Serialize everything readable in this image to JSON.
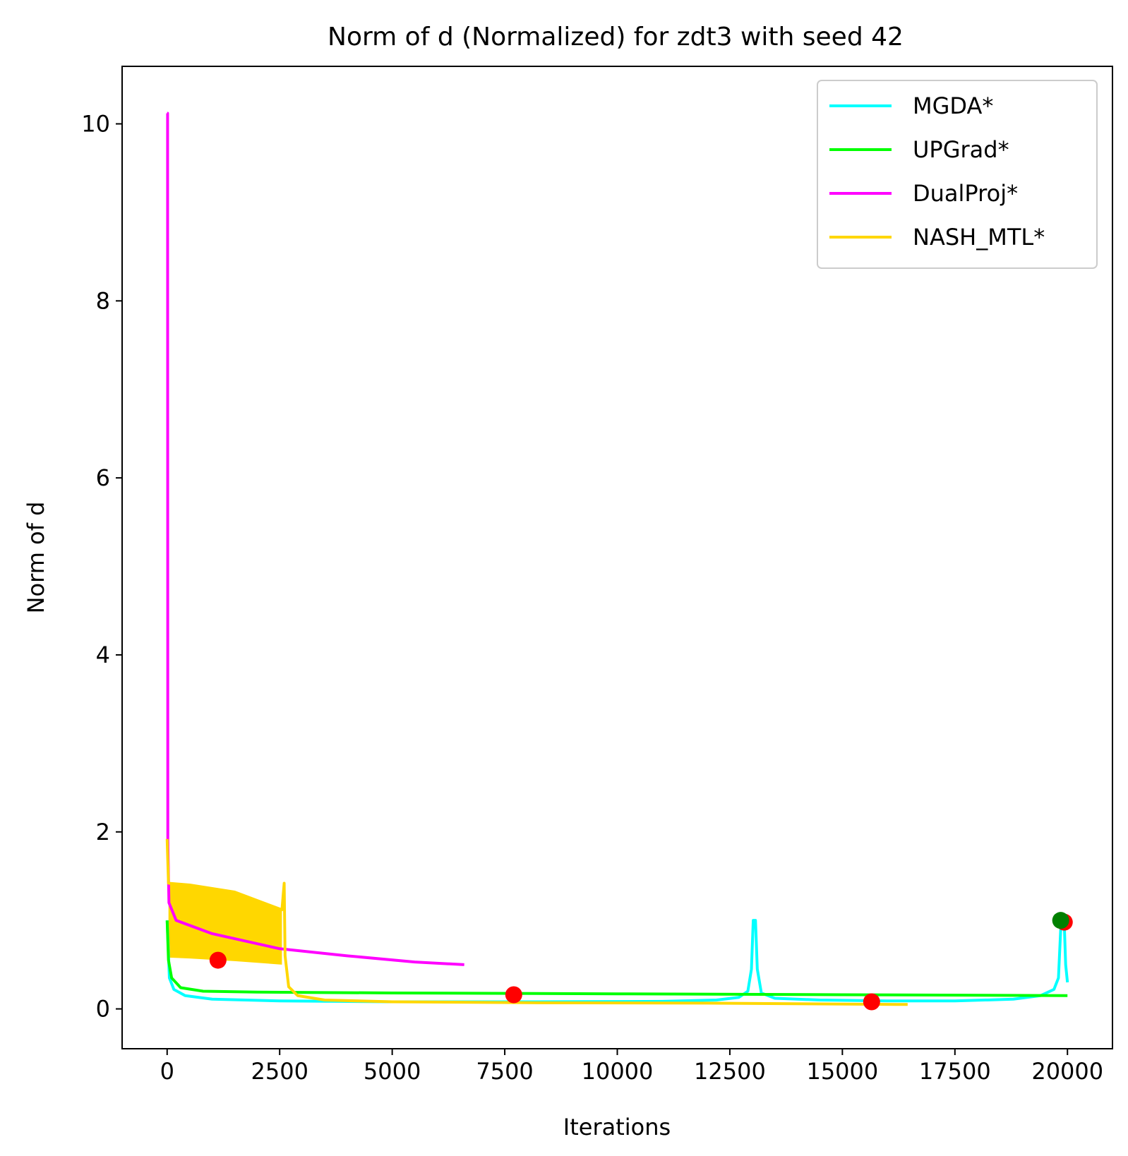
{
  "chart_data": {
    "type": "line",
    "title": "Norm of d (Normalized) for zdt3 with seed 42",
    "xlabel": "Iterations",
    "ylabel": "Norm of d",
    "xlim": [
      -1000,
      21000
    ],
    "ylim": [
      -0.45,
      10.65
    ],
    "xticks": [
      0,
      2500,
      5000,
      7500,
      10000,
      12500,
      15000,
      17500,
      20000
    ],
    "xtick_labels": [
      "0",
      "2500",
      "5000",
      "7500",
      "10000",
      "12500",
      "15000",
      "17500",
      "20000"
    ],
    "yticks": [
      0,
      2,
      4,
      6,
      8,
      10
    ],
    "ytick_labels": [
      "0",
      "2",
      "4",
      "6",
      "8",
      "10"
    ],
    "grid": false,
    "legend_position": "top-right",
    "series": [
      {
        "name": "MGDA*",
        "color": "#00ffff",
        "points": [
          [
            0,
            1.0
          ],
          [
            50,
            0.35
          ],
          [
            150,
            0.22
          ],
          [
            400,
            0.15
          ],
          [
            1000,
            0.11
          ],
          [
            2500,
            0.09
          ],
          [
            5000,
            0.08
          ],
          [
            8000,
            0.08
          ],
          [
            11000,
            0.085
          ],
          [
            12200,
            0.1
          ],
          [
            12700,
            0.13
          ],
          [
            12900,
            0.2
          ],
          [
            12980,
            0.45
          ],
          [
            13020,
            1.0
          ],
          [
            13070,
            1.0
          ],
          [
            13110,
            0.45
          ],
          [
            13200,
            0.18
          ],
          [
            13500,
            0.12
          ],
          [
            14500,
            0.1
          ],
          [
            16000,
            0.09
          ],
          [
            17500,
            0.09
          ],
          [
            18800,
            0.11
          ],
          [
            19400,
            0.15
          ],
          [
            19700,
            0.22
          ],
          [
            19800,
            0.35
          ],
          [
            19850,
            0.9
          ],
          [
            19930,
            0.95
          ],
          [
            19960,
            0.5
          ],
          [
            20000,
            0.3
          ]
        ]
      },
      {
        "name": "UPGrad*",
        "color": "#00ff00",
        "points": [
          [
            0,
            1.0
          ],
          [
            30,
            0.55
          ],
          [
            100,
            0.35
          ],
          [
            300,
            0.24
          ],
          [
            800,
            0.2
          ],
          [
            2000,
            0.19
          ],
          [
            5000,
            0.18
          ],
          [
            10000,
            0.17
          ],
          [
            15000,
            0.16
          ],
          [
            20000,
            0.15
          ]
        ]
      },
      {
        "name": "DualProj*",
        "color": "#ff00ff",
        "points": [
          [
            0,
            10.12
          ],
          [
            10,
            10.12
          ],
          [
            15,
            1.9
          ],
          [
            40,
            1.2
          ],
          [
            200,
            1.0
          ],
          [
            1000,
            0.85
          ],
          [
            2500,
            0.68
          ],
          [
            4000,
            0.6
          ],
          [
            5500,
            0.53
          ],
          [
            6600,
            0.5
          ]
        ]
      },
      {
        "name": "NASH_MTL*",
        "color": "#ffd700",
        "points": [
          [
            0,
            1.92
          ],
          [
            30,
            1.42
          ],
          [
            500,
            1.4
          ],
          [
            1500,
            1.32
          ],
          [
            2550,
            1.12
          ],
          [
            2600,
            1.42
          ],
          [
            2620,
            0.6
          ],
          [
            2700,
            0.25
          ],
          [
            2900,
            0.15
          ],
          [
            3500,
            0.1
          ],
          [
            5000,
            0.08
          ],
          [
            8000,
            0.07
          ],
          [
            12000,
            0.065
          ],
          [
            16450,
            0.05
          ]
        ],
        "band": [
          [
            30,
            1.42,
            0.58
          ],
          [
            500,
            1.4,
            0.57
          ],
          [
            1500,
            1.32,
            0.54
          ],
          [
            2550,
            1.12,
            0.5
          ]
        ]
      }
    ],
    "markers": [
      {
        "x": 1130,
        "y": 0.55,
        "color": "#ff0000"
      },
      {
        "x": 7700,
        "y": 0.16,
        "color": "#ff0000"
      },
      {
        "x": 15650,
        "y": 0.08,
        "color": "#ff0000"
      },
      {
        "x": 19930,
        "y": 0.98,
        "color": "#ff0000"
      },
      {
        "x": 19850,
        "y": 1.0,
        "color": "#008000"
      }
    ]
  }
}
